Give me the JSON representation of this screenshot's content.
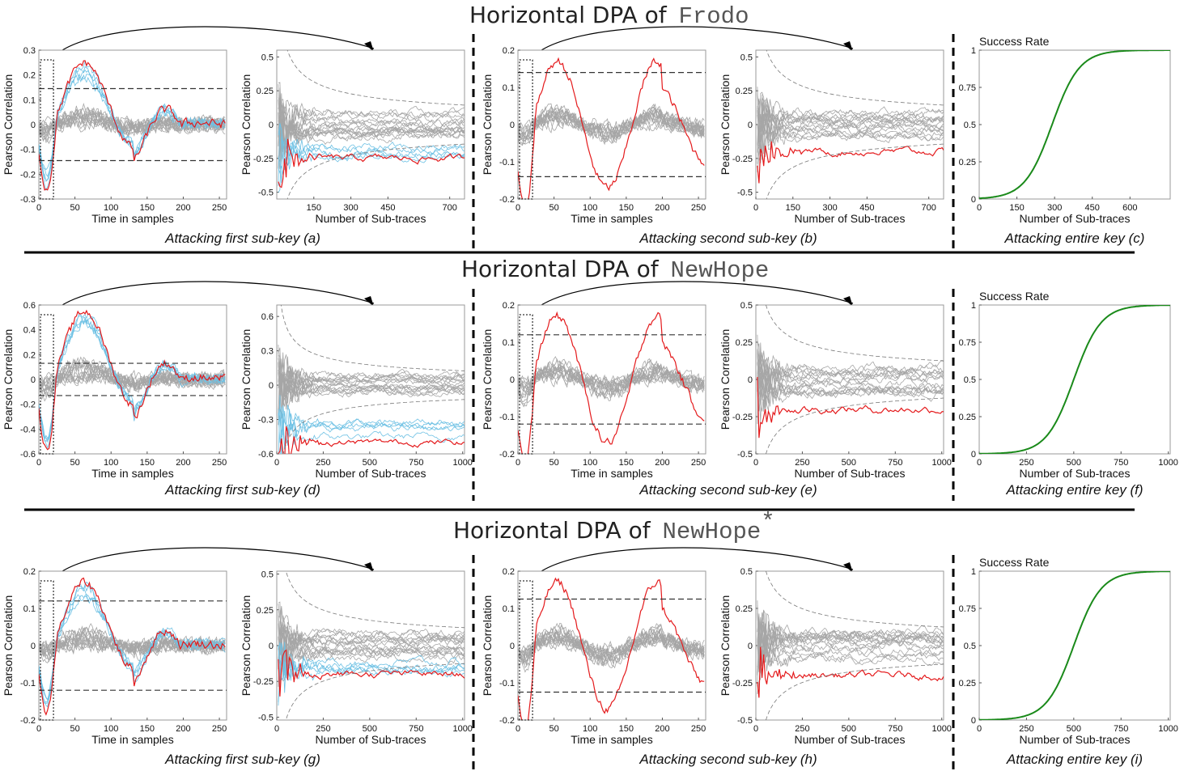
{
  "rows": [
    {
      "title_prefix": "Horizontal DPA of ",
      "title_scheme": "Frodo",
      "title_sup": "",
      "panels": [
        {
          "caption": "Attacking first sub-key (a)",
          "xlabel": "Time in samples",
          "ylabel": "Pearson Correlation",
          "xticks": [
            "0",
            "50",
            "100",
            "150",
            "200",
            "250"
          ],
          "yticks": [
            "-0.3",
            "-0.2",
            "-0.1",
            "0",
            "0.1",
            "0.2",
            "0.3"
          ],
          "xlim": [
            0,
            260
          ],
          "ylim": [
            -0.3,
            0.3
          ],
          "threshold": 0.145
        },
        {
          "caption": "",
          "xlabel": "Number of Sub-traces",
          "ylabel": "Pearson Correlation",
          "xticks": [
            "150",
            "300",
            "450",
            "700"
          ],
          "yticks": [
            "-0.5",
            "-0.25",
            "0",
            "0.25",
            "0.5"
          ],
          "xlim": [
            0,
            760
          ],
          "ylim": [
            -0.55,
            0.55
          ],
          "final_correct": -0.25
        },
        {
          "caption": "Attacking  second sub-key (b)",
          "xlabel": "Time in samples",
          "ylabel": "Pearson Correlation",
          "xticks": [
            "0",
            "50",
            "100",
            "150",
            "200",
            "250"
          ],
          "yticks": [
            "-0.2",
            "-0.1",
            "0",
            "0.1",
            "0.2"
          ],
          "xlim": [
            0,
            260
          ],
          "ylim": [
            -0.2,
            0.2
          ],
          "threshold": 0.14
        },
        {
          "caption": "",
          "xlabel": "Number of Sub-traces",
          "ylabel": "Pearson Correlation",
          "xticks": [
            "0",
            "150",
            "300",
            "450",
            "700"
          ],
          "yticks": [
            "-0.5",
            "-0.25",
            "0",
            "0.25",
            "0.5"
          ],
          "xlim": [
            0,
            760
          ],
          "ylim": [
            -0.55,
            0.55
          ],
          "final_correct": -0.2
        },
        {
          "caption": "Attacking entire key (c)",
          "title": "Success Rate",
          "xlabel": "Number of Sub-traces",
          "xticks": [
            "0",
            "150",
            "300",
            "450",
            "600"
          ],
          "yticks": [
            "0",
            "0.25",
            "0.5",
            "0.75",
            "1"
          ],
          "xlim": [
            0,
            760
          ],
          "ylim": [
            0,
            1
          ],
          "midpoint": 290
        }
      ]
    },
    {
      "title_prefix": "Horizontal DPA of ",
      "title_scheme": "NewHope",
      "title_sup": "",
      "panels": [
        {
          "caption": "Attacking first sub-key (d)",
          "xlabel": "Time in samples",
          "ylabel": "Pearson Correlation",
          "xticks": [
            "0",
            "50",
            "100",
            "150",
            "200",
            "250"
          ],
          "yticks": [
            "-0.6",
            "-0.4",
            "-0.2",
            "0",
            "0.2",
            "0.4",
            "0.6"
          ],
          "xlim": [
            0,
            260
          ],
          "ylim": [
            -0.6,
            0.6
          ],
          "threshold": 0.13
        },
        {
          "caption": "",
          "xlabel": "Number of Sub-traces",
          "ylabel": "Pearson Correlation",
          "xticks": [
            "0",
            "250",
            "500",
            "750",
            "1000"
          ],
          "yticks": [
            "-0.6",
            "-0.3",
            "0",
            "0.3",
            "0.6"
          ],
          "xlim": [
            0,
            1010
          ],
          "ylim": [
            -0.6,
            0.7
          ],
          "final_correct": -0.5
        },
        {
          "caption": "Attacking  second sub-key (e)",
          "xlabel": "Time in samples",
          "ylabel": "Pearson Correlation",
          "xticks": [
            "0",
            "50",
            "100",
            "150",
            "200",
            "250"
          ],
          "yticks": [
            "-0.2",
            "-0.1",
            "0",
            "0.1",
            "0.2"
          ],
          "xlim": [
            0,
            260
          ],
          "ylim": [
            -0.2,
            0.2
          ],
          "threshold": 0.12
        },
        {
          "caption": "",
          "xlabel": "Number of Sub-traces",
          "ylabel": "Pearson Correlation",
          "xticks": [
            "0",
            "250",
            "500",
            "750",
            "1000"
          ],
          "yticks": [
            "-0.5",
            "-0.25",
            "0",
            "0.25",
            "0.5"
          ],
          "xlim": [
            0,
            1010
          ],
          "ylim": [
            -0.5,
            0.5
          ],
          "final_correct": -0.2
        },
        {
          "caption": "Attacking entire key (f)",
          "title": "Success Rate",
          "xlabel": "Number of Sub-traces",
          "xticks": [
            "0",
            "250",
            "500",
            "750",
            "1000"
          ],
          "yticks": [
            "0",
            "0.25",
            "0.5",
            "0.75",
            "1"
          ],
          "xlim": [
            0,
            1010
          ],
          "ylim": [
            0,
            1
          ],
          "midpoint": 500
        }
      ]
    },
    {
      "title_prefix": "Horizontal DPA of ",
      "title_scheme": "NewHope",
      "title_sup": "*",
      "panels": [
        {
          "caption": "Attacking first sub-key (g)",
          "xlabel": "Time in samples",
          "ylabel": "Pearson Correlation",
          "xticks": [
            "0",
            "50",
            "100",
            "150",
            "200",
            "250"
          ],
          "yticks": [
            "-0.2",
            "-0.1",
            "0",
            "0.1",
            "0.2"
          ],
          "xlim": [
            0,
            260
          ],
          "ylim": [
            -0.2,
            0.2
          ],
          "threshold": 0.12
        },
        {
          "caption": "",
          "xlabel": "Number of Sub-traces",
          "ylabel": "Pearson Correlation",
          "xticks": [
            "0",
            "250",
            "500",
            "750",
            "1000"
          ],
          "yticks": [
            "-0.5",
            "-0.25",
            "0",
            "0.25",
            "0.5"
          ],
          "xlim": [
            0,
            1010
          ],
          "ylim": [
            -0.52,
            0.52
          ],
          "final_correct": -0.2
        },
        {
          "caption": "Attacking  second sub-key (h)",
          "xlabel": "Time in samples",
          "ylabel": "Pearson Correlation",
          "xticks": [
            "0",
            "50",
            "100",
            "150",
            "200",
            "250"
          ],
          "yticks": [
            "-0.2",
            "-0.1",
            "0",
            "0.1",
            "0.2"
          ],
          "xlim": [
            0,
            260
          ],
          "ylim": [
            -0.2,
            0.2
          ],
          "threshold": 0.125
        },
        {
          "caption": "",
          "xlabel": "Number of Sub-traces",
          "ylabel": "Pearson Correlation",
          "xticks": [
            "0",
            "250",
            "500",
            "750",
            "1000"
          ],
          "yticks": [
            "-0.5",
            "-0.25",
            "0",
            "0.25",
            "0.5"
          ],
          "xlim": [
            0,
            1010
          ],
          "ylim": [
            -0.5,
            0.5
          ],
          "final_correct": -0.2
        },
        {
          "caption": "Attacking entire key (i)",
          "title": "Success Rate",
          "xlabel": "Number of Sub-traces",
          "xticks": [
            "0",
            "250",
            "500",
            "750",
            "1000"
          ],
          "yticks": [
            "0",
            "0.25",
            "0.5",
            "0.75",
            "1"
          ],
          "xlim": [
            0,
            1010
          ],
          "ylim": [
            0,
            1
          ],
          "midpoint": 500
        }
      ]
    }
  ],
  "colors": {
    "correct": "#e41a1c",
    "close": "#6ec1e4",
    "wrong": "#a6a6a6",
    "success": "#1a8a1a",
    "threshold": "#333333"
  },
  "chart_data": [
    {
      "type": "line",
      "title": "Horizontal DPA of Frodo",
      "panels": [
        "a",
        "b",
        "c"
      ],
      "success_rate_final": 1.0
    },
    {
      "type": "line",
      "title": "Horizontal DPA of NewHope",
      "panels": [
        "d",
        "e",
        "f"
      ],
      "success_rate_final": 1.0
    },
    {
      "type": "line",
      "title": "Horizontal DPA of NewHope*",
      "panels": [
        "g",
        "h",
        "i"
      ],
      "success_rate_final": 1.0
    }
  ]
}
